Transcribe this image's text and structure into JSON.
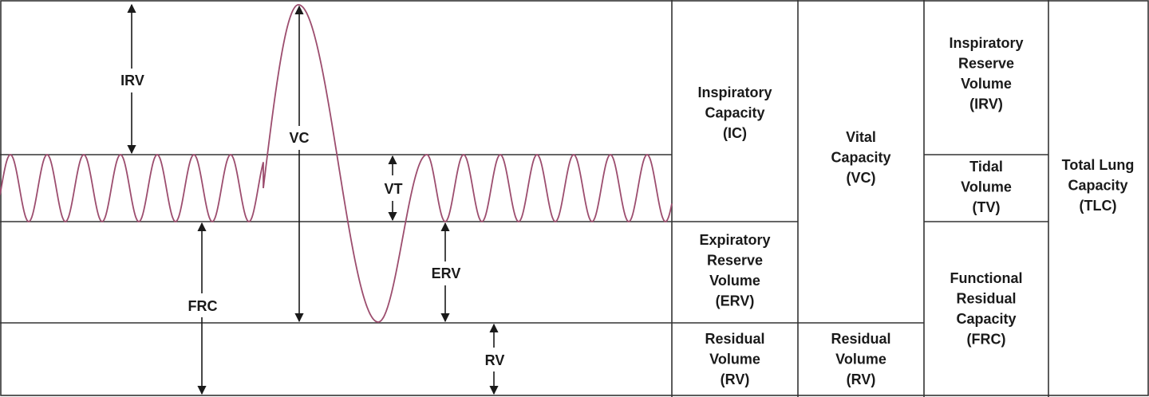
{
  "curve_color": "#9c4d6e",
  "line_color": "#333333",
  "arrows": {
    "irv": "IRV",
    "vc": "VC",
    "vt": "VT",
    "frc": "FRC",
    "erv": "ERV",
    "rv": "RV"
  },
  "table": {
    "col1": {
      "ic": [
        "Inspiratory",
        "Capacity",
        "(IC)"
      ],
      "erv": [
        "Expiratory",
        "Reserve",
        "Volume",
        "(ERV)"
      ],
      "rv": [
        "Residual",
        "Volume",
        "(RV)"
      ]
    },
    "col2": {
      "vc": [
        "Vital",
        "Capacity",
        "(VC)"
      ],
      "rv": [
        "Residual",
        "Volume",
        "(RV)"
      ]
    },
    "col3": {
      "irv": [
        "Inspiratory",
        "Reserve",
        "Volume",
        "(IRV)"
      ],
      "tv": [
        "Tidal",
        "Volume",
        "(TV)"
      ],
      "frc": [
        "Functional",
        "Residual",
        "Capacity",
        "(FRC)"
      ]
    },
    "col4": {
      "tlc": [
        "Total Lung",
        "Capacity",
        "(TLC)"
      ]
    }
  }
}
